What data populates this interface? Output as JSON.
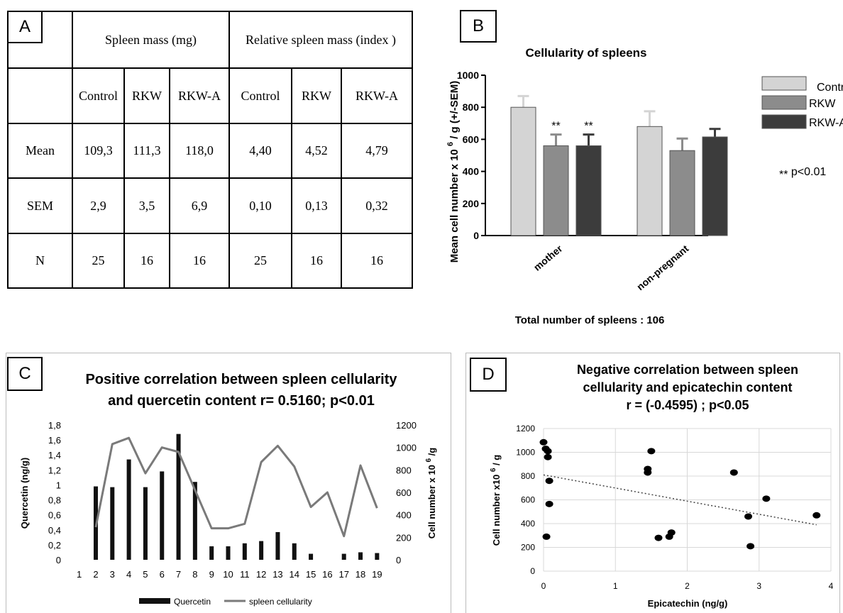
{
  "panelA": {
    "letter": "A",
    "group_headers": [
      "Spleen mass (mg)",
      "Relative spleen mass (index )"
    ],
    "columns": [
      "Control",
      "RKW",
      "RKW-A",
      "Control",
      "RKW",
      "RKW-A"
    ],
    "rows": [
      {
        "label": "Mean",
        "values": [
          "109,3",
          "111,3",
          "118,0",
          "4,40",
          "4,52",
          "4,79"
        ]
      },
      {
        "label": "SEM",
        "values": [
          "2,9",
          "3,5",
          "6,9",
          "0,10",
          "0,13",
          "0,32"
        ]
      },
      {
        "label": "N",
        "values": [
          "25",
          "16",
          "16",
          "25",
          "16",
          "16"
        ]
      }
    ]
  },
  "panelB": {
    "letter": "B",
    "significance": "p<0.01",
    "significance_marker": "**"
  },
  "panelC": {
    "letter": "C"
  },
  "panelD": {
    "letter": "D"
  },
  "chart_data": [
    {
      "type": "bar",
      "title": "Cellularity of spleens",
      "ylabel": "Mean cell number x 10^6 / g (+/-SEM)",
      "ylabel_parts": [
        "Mean cell number x 10",
        "6",
        "/ g (+/-SEM)"
      ],
      "xlabel": "Total number of spleens : 106",
      "categories": [
        "mother",
        "non-pregnant"
      ],
      "series": [
        {
          "name": "Control",
          "values": [
            800,
            680
          ],
          "errors": [
            70,
            95
          ],
          "color": "#d4d4d4"
        },
        {
          "name": "RKW",
          "values": [
            560,
            530
          ],
          "errors": [
            70,
            75
          ],
          "color": "#8c8c8c"
        },
        {
          "name": "RKW-A",
          "values": [
            560,
            615
          ],
          "errors": [
            70,
            50
          ],
          "color": "#3c3c3c"
        }
      ],
      "significance": [
        [
          "",
          "",
          ""
        ],
        [
          "",
          "**",
          "**"
        ]
      ],
      "ylim": [
        0,
        1000
      ],
      "yticks": [
        "0",
        "200",
        "400",
        "600",
        "800",
        "1000"
      ],
      "legend": "right"
    },
    {
      "type": "bar",
      "title_lines": [
        "Positive correlation between spleen cellularity",
        "and quercetin content r= 0.5160; p<0.01"
      ],
      "ylabel": "Quercetin (ng/g)",
      "y2label_parts": [
        "Cell number x 10",
        "6",
        "/g"
      ],
      "categories": [
        "1",
        "2",
        "3",
        "4",
        "5",
        "6",
        "7",
        "8",
        "9",
        "10",
        "11",
        "12",
        "13",
        "14",
        "15",
        "16",
        "17",
        "18",
        "19"
      ],
      "series": [
        {
          "name": "Quercetin",
          "kind": "bar",
          "axis": "left",
          "color": "#111111",
          "values": [
            null,
            0.98,
            0.97,
            1.34,
            0.97,
            1.18,
            1.68,
            1.04,
            0.18,
            0.18,
            0.22,
            0.25,
            0.37,
            0.22,
            0.08,
            null,
            0.08,
            0.1,
            0.09
          ]
        },
        {
          "name": "spleen cellularity",
          "kind": "line",
          "axis": "right",
          "color": "#7a7a7a",
          "values": [
            null,
            290,
            1030,
            1085,
            770,
            1000,
            960,
            620,
            280,
            280,
            320,
            870,
            1015,
            830,
            470,
            600,
            210,
            840,
            460
          ]
        }
      ],
      "ylim": [
        0,
        1.8
      ],
      "yticks": [
        "0",
        "0,2",
        "0,4",
        "0,6",
        "0,8",
        "1",
        "1,2",
        "1,4",
        "1,6",
        "1,8"
      ],
      "y2lim": [
        0,
        1200
      ],
      "y2ticks": [
        "0",
        "200",
        "400",
        "600",
        "800",
        "1000",
        "1200"
      ],
      "legend": "bottom"
    },
    {
      "type": "scatter",
      "title_lines": [
        "Negative correlation between spleen",
        "cellularity and epicatechin content",
        "r = (-0.4595) ; p<0.05"
      ],
      "xlabel": "Epicatechin (ng/g)",
      "ylabel_parts": [
        "Cell number x10",
        "6",
        "/ g"
      ],
      "xlim": [
        0,
        4
      ],
      "ylim": [
        0,
        1200
      ],
      "xticks": [
        "0",
        "1",
        "2",
        "3",
        "4"
      ],
      "yticks": [
        "0",
        "200",
        "400",
        "600",
        "800",
        "1000",
        "1200"
      ],
      "points": [
        [
          0.0,
          1085
        ],
        [
          0.03,
          1030
        ],
        [
          0.06,
          1010
        ],
        [
          0.06,
          960
        ],
        [
          0.08,
          760
        ],
        [
          0.08,
          565
        ],
        [
          0.04,
          290
        ],
        [
          1.45,
          860
        ],
        [
          1.45,
          830
        ],
        [
          1.5,
          1010
        ],
        [
          1.6,
          280
        ],
        [
          1.75,
          290
        ],
        [
          1.78,
          325
        ],
        [
          2.65,
          830
        ],
        [
          2.85,
          460
        ],
        [
          2.88,
          210
        ],
        [
          3.1,
          610
        ],
        [
          3.8,
          470
        ]
      ],
      "trendline": {
        "from": [
          0,
          810
        ],
        "to": [
          3.8,
          390
        ]
      }
    }
  ]
}
